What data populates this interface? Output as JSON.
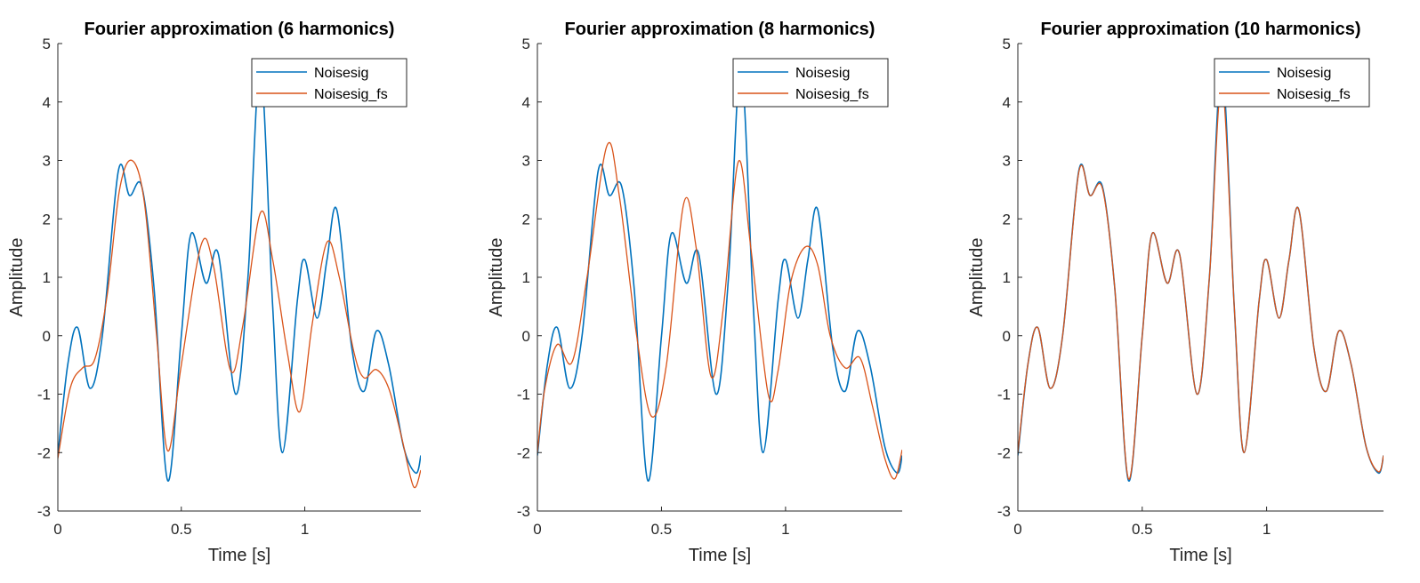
{
  "chart_data": [
    {
      "type": "line",
      "title": "Fourier approximation (6 harmonics)",
      "xlabel": "Time [s]",
      "ylabel": "Amplitude",
      "xlim": [
        0,
        1.47
      ],
      "ylim": [
        -3,
        5
      ],
      "xticks": [
        "0",
        "0.5",
        "1"
      ],
      "yticks": [
        "-3",
        "-2",
        "-1",
        "0",
        "1",
        "2",
        "3",
        "4",
        "5"
      ],
      "legend_position": "top-right",
      "series": [
        {
          "name": "Noisesig",
          "color": "#0072BD",
          "x": [
            0.0,
            0.04,
            0.08,
            0.13,
            0.18,
            0.245,
            0.29,
            0.34,
            0.39,
            0.445,
            0.5,
            0.54,
            0.6,
            0.65,
            0.72,
            0.77,
            0.82,
            0.87,
            0.91,
            0.97,
            1.0,
            1.05,
            1.09,
            1.13,
            1.19,
            1.24,
            1.29,
            1.34,
            1.4,
            1.45,
            1.47
          ],
          "y": [
            -2.05,
            -0.5,
            0.14,
            -0.9,
            0.0,
            2.82,
            2.4,
            2.55,
            0.8,
            -2.48,
            0.0,
            1.75,
            0.9,
            1.4,
            -1.0,
            1.0,
            4.6,
            0.5,
            -2.0,
            0.6,
            1.3,
            0.3,
            1.3,
            2.15,
            -0.2,
            -0.95,
            0.08,
            -0.5,
            -1.9,
            -2.35,
            -2.05
          ]
        },
        {
          "name": "Noisesig_fs",
          "color": "#D95319",
          "x": [
            0.0,
            0.05,
            0.1,
            0.15,
            0.2,
            0.25,
            0.3,
            0.35,
            0.4,
            0.445,
            0.5,
            0.58,
            0.63,
            0.7,
            0.75,
            0.82,
            0.87,
            0.93,
            0.98,
            1.03,
            1.09,
            1.14,
            1.2,
            1.24,
            1.29,
            1.34,
            1.39,
            1.44,
            1.47
          ],
          "y": [
            -2.1,
            -0.9,
            -0.55,
            -0.4,
            0.7,
            2.5,
            3.0,
            2.3,
            0.0,
            -1.97,
            -0.5,
            1.55,
            1.2,
            -0.6,
            0.2,
            2.1,
            1.3,
            -0.3,
            -1.3,
            0.2,
            1.6,
            1.0,
            -0.3,
            -0.72,
            -0.58,
            -0.9,
            -1.7,
            -2.58,
            -2.3
          ]
        }
      ]
    },
    {
      "type": "line",
      "title": "Fourier approximation (8 harmonics)",
      "xlabel": "Time [s]",
      "ylabel": "Amplitude",
      "xlim": [
        0,
        1.47
      ],
      "ylim": [
        -3,
        5
      ],
      "xticks": [
        "0",
        "0.5",
        "1"
      ],
      "yticks": [
        "-3",
        "-2",
        "-1",
        "0",
        "1",
        "2",
        "3",
        "4",
        "5"
      ],
      "legend_position": "top-right",
      "series": [
        {
          "name": "Noisesig",
          "color": "#0072BD",
          "x": [
            0.0,
            0.04,
            0.08,
            0.13,
            0.18,
            0.245,
            0.29,
            0.34,
            0.39,
            0.445,
            0.5,
            0.54,
            0.6,
            0.65,
            0.72,
            0.77,
            0.82,
            0.87,
            0.91,
            0.97,
            1.0,
            1.05,
            1.09,
            1.13,
            1.19,
            1.24,
            1.29,
            1.34,
            1.4,
            1.45,
            1.47
          ],
          "y": [
            -2.05,
            -0.5,
            0.14,
            -0.9,
            0.0,
            2.82,
            2.4,
            2.55,
            0.8,
            -2.48,
            0.0,
            1.75,
            0.9,
            1.4,
            -1.0,
            1.0,
            4.6,
            0.5,
            -2.0,
            0.6,
            1.3,
            0.3,
            1.3,
            2.15,
            -0.2,
            -0.95,
            0.08,
            -0.5,
            -1.9,
            -2.35,
            -2.05
          ]
        },
        {
          "name": "Noisesig_fs",
          "color": "#D95319",
          "x": [
            0.0,
            0.03,
            0.08,
            0.14,
            0.2,
            0.28,
            0.33,
            0.4,
            0.46,
            0.52,
            0.59,
            0.64,
            0.7,
            0.75,
            0.81,
            0.86,
            0.93,
            0.97,
            1.02,
            1.08,
            1.13,
            1.18,
            1.24,
            1.3,
            1.35,
            1.4,
            1.44,
            1.47
          ],
          "y": [
            -2.0,
            -0.9,
            -0.15,
            -0.45,
            1.0,
            3.25,
            2.4,
            0.0,
            -1.38,
            -0.5,
            2.27,
            1.5,
            -0.7,
            0.5,
            2.98,
            1.5,
            -1.0,
            -0.6,
            0.9,
            1.52,
            1.2,
            0.0,
            -0.55,
            -0.38,
            -1.2,
            -2.1,
            -2.45,
            -1.95
          ]
        }
      ]
    },
    {
      "type": "line",
      "title": "Fourier approximation (10 harmonics)",
      "xlabel": "Time [s]",
      "ylabel": "Amplitude",
      "xlim": [
        0,
        1.47
      ],
      "ylim": [
        -3,
        5
      ],
      "xticks": [
        "0",
        "0.5",
        "1"
      ],
      "yticks": [
        "-3",
        "-2",
        "-1",
        "0",
        "1",
        "2",
        "3",
        "4",
        "5"
      ],
      "legend_position": "top-right",
      "series": [
        {
          "name": "Noisesig",
          "color": "#0072BD",
          "x": [
            0.0,
            0.04,
            0.08,
            0.13,
            0.18,
            0.245,
            0.29,
            0.34,
            0.39,
            0.445,
            0.5,
            0.54,
            0.6,
            0.65,
            0.72,
            0.77,
            0.82,
            0.87,
            0.91,
            0.97,
            1.0,
            1.05,
            1.09,
            1.13,
            1.19,
            1.24,
            1.29,
            1.34,
            1.4,
            1.45,
            1.47
          ],
          "y": [
            -2.05,
            -0.5,
            0.14,
            -0.9,
            0.0,
            2.82,
            2.4,
            2.55,
            0.8,
            -2.48,
            0.0,
            1.75,
            0.9,
            1.4,
            -1.0,
            1.0,
            4.6,
            0.5,
            -2.0,
            0.6,
            1.3,
            0.3,
            1.3,
            2.15,
            -0.2,
            -0.95,
            0.08,
            -0.5,
            -1.9,
            -2.35,
            -2.05
          ]
        },
        {
          "name": "Noisesig_fs",
          "color": "#D95319",
          "x": [
            0.0,
            0.04,
            0.08,
            0.13,
            0.18,
            0.245,
            0.29,
            0.34,
            0.39,
            0.445,
            0.5,
            0.54,
            0.6,
            0.65,
            0.72,
            0.77,
            0.82,
            0.87,
            0.91,
            0.97,
            1.0,
            1.05,
            1.09,
            1.13,
            1.19,
            1.24,
            1.29,
            1.34,
            1.4,
            1.45,
            1.47
          ],
          "y": [
            -2.0,
            -0.5,
            0.14,
            -0.9,
            0.0,
            2.8,
            2.4,
            2.52,
            0.8,
            -2.45,
            0.0,
            1.75,
            0.9,
            1.4,
            -1.0,
            1.0,
            4.3,
            0.5,
            -2.0,
            0.6,
            1.3,
            0.3,
            1.3,
            2.15,
            -0.2,
            -0.95,
            0.08,
            -0.5,
            -1.9,
            -2.33,
            -2.05
          ]
        }
      ]
    }
  ]
}
